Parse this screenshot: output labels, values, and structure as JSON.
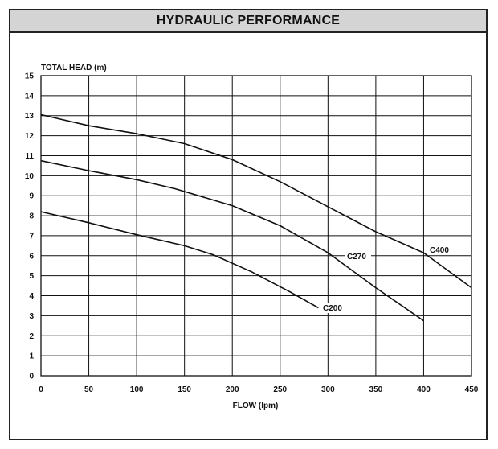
{
  "chart_data": {
    "type": "line",
    "title": "HYDRAULIC PERFORMANCE",
    "xlabel": "FLOW (lpm)",
    "ylabel": "TOTAL  HEAD (m)",
    "xlim": [
      0,
      450
    ],
    "ylim": [
      0,
      15
    ],
    "xticks": [
      0,
      50,
      100,
      150,
      200,
      250,
      300,
      350,
      400,
      450
    ],
    "yticks": [
      0,
      1,
      2,
      3,
      4,
      5,
      6,
      7,
      8,
      9,
      10,
      11,
      12,
      13,
      14,
      15
    ],
    "grid": true,
    "line_color": "#111111",
    "series": [
      {
        "name": "C400",
        "x": [
          0,
          50,
          100,
          150,
          200,
          250,
          300,
          350,
          400,
          450
        ],
        "y": [
          13.05,
          12.5,
          12.1,
          11.6,
          10.8,
          9.7,
          8.45,
          7.2,
          6.15,
          4.4
        ]
      },
      {
        "name": "C270",
        "x": [
          0,
          50,
          100,
          140,
          200,
          250,
          300,
          350,
          400
        ],
        "y": [
          10.75,
          10.25,
          9.8,
          9.35,
          8.5,
          7.5,
          6.15,
          4.4,
          2.75
        ]
      },
      {
        "name": "C200",
        "x": [
          0,
          50,
          100,
          150,
          180,
          220,
          260,
          290
        ],
        "y": [
          8.2,
          7.65,
          7.05,
          6.5,
          6.05,
          5.2,
          4.2,
          3.4
        ]
      }
    ]
  }
}
